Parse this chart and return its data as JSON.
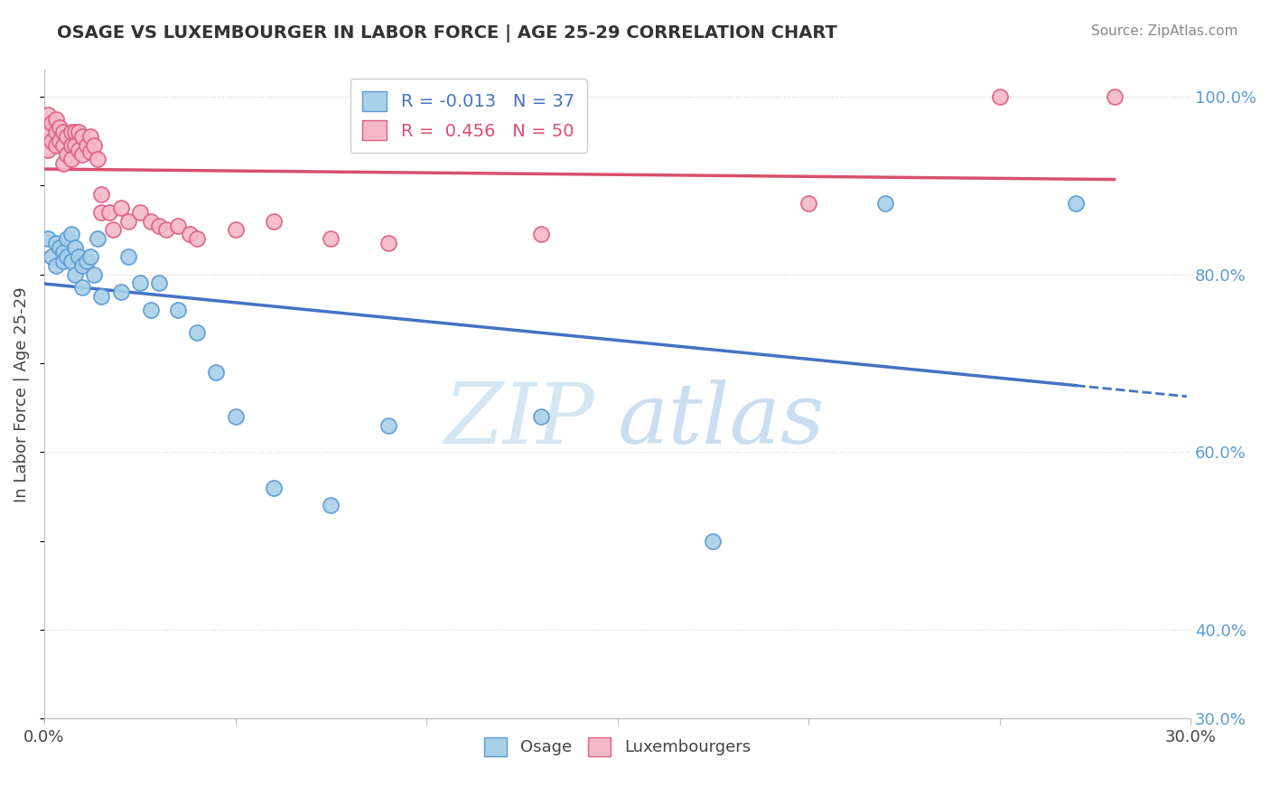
{
  "title": "OSAGE VS LUXEMBOURGER IN LABOR FORCE | AGE 25-29 CORRELATION CHART",
  "source_text": "Source: ZipAtlas.com",
  "ylabel": "In Labor Force | Age 25-29",
  "xlim": [
    0.0,
    0.3
  ],
  "ylim": [
    0.3,
    1.03
  ],
  "osage_color": "#a8d0e8",
  "osage_edge_color": "#5b9bd5",
  "luxembourger_color": "#f4b8c8",
  "luxembourger_edge_color": "#e06080",
  "osage_line_color": "#4472c4",
  "luxembourger_line_color": "#d94f6e",
  "legend_r1": "R = -0.013",
  "legend_n1": "N = 37",
  "legend_r2": "R =  0.456",
  "legend_n2": "N = 50",
  "legend_osage": "Osage",
  "legend_lux": "Luxembourgers",
  "watermark_zip": "ZIP",
  "watermark_atlas": "atlas",
  "grid_color": "#cccccc",
  "background_color": "#ffffff",
  "osage_x": [
    0.001,
    0.002,
    0.003,
    0.003,
    0.004,
    0.005,
    0.005,
    0.006,
    0.006,
    0.007,
    0.007,
    0.008,
    0.008,
    0.009,
    0.01,
    0.01,
    0.011,
    0.012,
    0.013,
    0.014,
    0.015,
    0.02,
    0.022,
    0.025,
    0.028,
    0.03,
    0.035,
    0.04,
    0.045,
    0.05,
    0.06,
    0.075,
    0.09,
    0.13,
    0.175,
    0.22,
    0.27
  ],
  "osage_y": [
    0.84,
    0.82,
    0.835,
    0.81,
    0.83,
    0.825,
    0.815,
    0.84,
    0.82,
    0.845,
    0.815,
    0.83,
    0.8,
    0.82,
    0.81,
    0.785,
    0.815,
    0.82,
    0.8,
    0.84,
    0.775,
    0.78,
    0.82,
    0.79,
    0.76,
    0.79,
    0.76,
    0.735,
    0.69,
    0.64,
    0.56,
    0.54,
    0.63,
    0.64,
    0.5,
    0.88,
    0.88
  ],
  "luxembourger_x": [
    0.001,
    0.001,
    0.001,
    0.002,
    0.002,
    0.003,
    0.003,
    0.003,
    0.004,
    0.004,
    0.005,
    0.005,
    0.005,
    0.006,
    0.006,
    0.007,
    0.007,
    0.007,
    0.008,
    0.008,
    0.009,
    0.009,
    0.01,
    0.01,
    0.011,
    0.012,
    0.012,
    0.013,
    0.014,
    0.015,
    0.015,
    0.017,
    0.018,
    0.02,
    0.022,
    0.025,
    0.028,
    0.03,
    0.032,
    0.035,
    0.038,
    0.04,
    0.05,
    0.06,
    0.075,
    0.09,
    0.13,
    0.2,
    0.25,
    0.28
  ],
  "luxembourger_y": [
    0.98,
    0.96,
    0.94,
    0.97,
    0.95,
    0.975,
    0.96,
    0.945,
    0.965,
    0.95,
    0.96,
    0.945,
    0.925,
    0.955,
    0.935,
    0.96,
    0.945,
    0.93,
    0.96,
    0.945,
    0.96,
    0.94,
    0.955,
    0.935,
    0.945,
    0.955,
    0.938,
    0.945,
    0.93,
    0.89,
    0.87,
    0.87,
    0.85,
    0.875,
    0.86,
    0.87,
    0.86,
    0.855,
    0.85,
    0.855,
    0.845,
    0.84,
    0.85,
    0.86,
    0.84,
    0.835,
    0.845,
    0.88,
    1.0,
    1.0
  ]
}
